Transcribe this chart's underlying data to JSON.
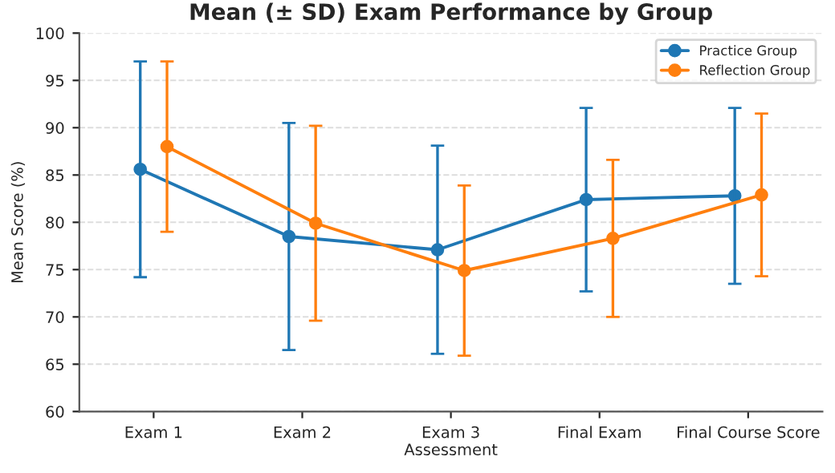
{
  "chart_data": {
    "type": "line",
    "title": "Mean (± SD) Exam Performance by Group",
    "xlabel": "Assessment",
    "ylabel": "Mean Score (%)",
    "categories": [
      "Exam 1",
      "Exam 2",
      "Exam 3",
      "Final Exam",
      "Final Course Score"
    ],
    "series": [
      {
        "name": "Practice Group",
        "color": "#1f77b4",
        "values": [
          85.6,
          78.5,
          77.1,
          82.4,
          82.8
        ],
        "errors": [
          11.4,
          12.0,
          11.0,
          9.7,
          9.3
        ]
      },
      {
        "name": "Reflection Group",
        "color": "#ff7f0e",
        "values": [
          88.0,
          79.9,
          74.9,
          78.3,
          82.9
        ],
        "errors": [
          9.0,
          10.3,
          9.0,
          8.3,
          8.6
        ]
      }
    ],
    "ylim": [
      60,
      100
    ],
    "yticks": [
      60,
      65,
      70,
      75,
      80,
      85,
      90,
      95,
      100
    ],
    "grid": "y",
    "legend": "top right",
    "marker": "circle",
    "line_style": "solid"
  }
}
